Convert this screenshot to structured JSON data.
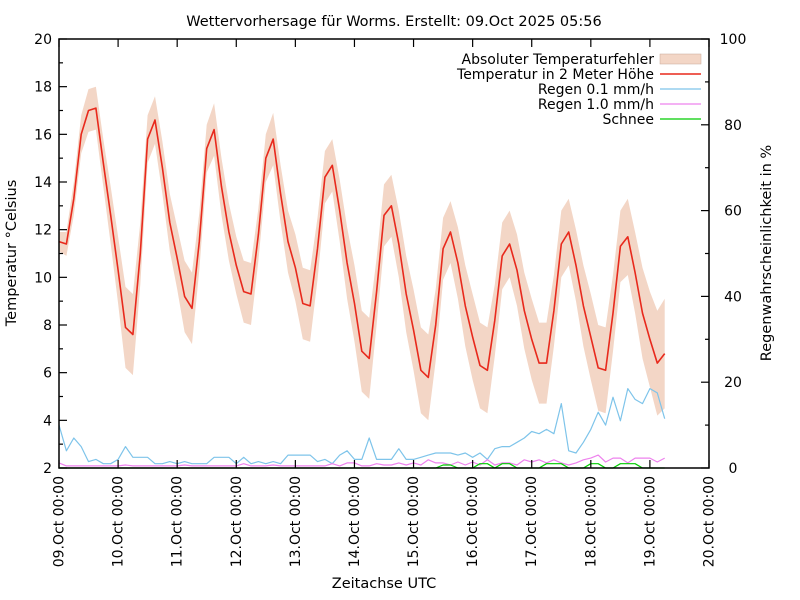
{
  "title": "Wettervorhersage für Worms. Erstellt: 09.Oct 2025 05:56",
  "axes": {
    "x_label": "Zeitachse UTC",
    "y_left_label": "Temperatur °Celsius",
    "y_right_label": "Regenwahrscheinlichkeit in %"
  },
  "colors": {
    "background": "#ffffff",
    "border": "#000000",
    "text": "#000000",
    "error_band": "#f3d6c6",
    "temperature": "#e8291c",
    "rain_01": "#7ec4ea",
    "rain_10": "#ee82ee",
    "snow": "#00cc00"
  },
  "chart_data": {
    "type": "line",
    "title": "Wettervorhersage für Worms. Erstellt: 09.Oct 2025 05:56",
    "xlabel": "Zeitachse UTC",
    "x_unit": "hours since 09.Oct 00:00 UTC",
    "x_range_hours": [
      0,
      264
    ],
    "grid": false,
    "legend_position": "top-right-inside",
    "x_ticks": [
      {
        "hour": 0,
        "label": "09.Oct 00:00"
      },
      {
        "hour": 24,
        "label": "10.Oct 00:00"
      },
      {
        "hour": 48,
        "label": "11.Oct 00:00"
      },
      {
        "hour": 72,
        "label": "12.Oct 00:00"
      },
      {
        "hour": 96,
        "label": "13.Oct 00:00"
      },
      {
        "hour": 120,
        "label": "14.Oct 00:00"
      },
      {
        "hour": 144,
        "label": "15.Oct 00:00"
      },
      {
        "hour": 168,
        "label": "16.Oct 00:00"
      },
      {
        "hour": 192,
        "label": "17.Oct 00:00"
      },
      {
        "hour": 216,
        "label": "18.Oct 00:00"
      },
      {
        "hour": 240,
        "label": "19.Oct 00:00"
      },
      {
        "hour": 264,
        "label": "20.Oct 00:00"
      }
    ],
    "y_left": {
      "label": "Temperatur °Celsius",
      "min": 2,
      "max": 20,
      "major_ticks": [
        2,
        4,
        6,
        8,
        10,
        12,
        14,
        16,
        18,
        20
      ],
      "minor_ticks": [
        3,
        5,
        7,
        9,
        11,
        13,
        15,
        17,
        19
      ]
    },
    "y_right": {
      "label": "Regenwahrscheinlichkeit in %",
      "min": 0,
      "max": 100,
      "major_ticks": [
        0,
        20,
        40,
        60,
        80,
        100
      ],
      "minor_ticks": [
        10,
        30,
        50,
        70,
        90
      ]
    },
    "x_hours": [
      0,
      3,
      6,
      9,
      12,
      15,
      18,
      21,
      24,
      27,
      30,
      33,
      36,
      39,
      42,
      45,
      48,
      51,
      54,
      57,
      60,
      63,
      66,
      69,
      72,
      75,
      78,
      81,
      84,
      87,
      90,
      93,
      96,
      99,
      102,
      105,
      108,
      111,
      114,
      117,
      120,
      123,
      126,
      129,
      132,
      135,
      138,
      141,
      144,
      147,
      150,
      153,
      156,
      159,
      162,
      165,
      168,
      171,
      174,
      177,
      180,
      183,
      186,
      189,
      192,
      195,
      198,
      201,
      204,
      207,
      210,
      213,
      216,
      219,
      222,
      225,
      228,
      231,
      234,
      237,
      240,
      243,
      246
    ],
    "series": [
      {
        "id": "error_band",
        "name": "Absoluter Temperaturfehler",
        "type": "band",
        "axis": "left",
        "color": "#f3d6c6",
        "half_width": [
          0.4,
          0.5,
          0.7,
          0.8,
          0.9,
          0.9,
          1.0,
          1.2,
          1.4,
          1.7,
          1.7,
          1.3,
          1.0,
          1.0,
          1.1,
          1.2,
          1.3,
          1.5,
          1.5,
          1.2,
          1.0,
          1.1,
          1.2,
          1.2,
          1.2,
          1.3,
          1.3,
          1.1,
          1.0,
          1.1,
          1.2,
          1.3,
          1.4,
          1.5,
          1.5,
          1.3,
          1.1,
          1.1,
          1.3,
          1.5,
          1.6,
          1.7,
          1.7,
          1.4,
          1.3,
          1.3,
          1.4,
          1.6,
          1.7,
          1.8,
          1.8,
          1.5,
          1.3,
          1.3,
          1.5,
          1.7,
          1.8,
          1.8,
          1.8,
          1.5,
          1.4,
          1.4,
          1.5,
          1.6,
          1.7,
          1.7,
          1.7,
          1.5,
          1.4,
          1.4,
          1.5,
          1.7,
          1.8,
          1.8,
          1.8,
          1.6,
          1.5,
          1.6,
          1.7,
          1.9,
          2.0,
          2.2,
          2.3
        ]
      },
      {
        "id": "temperature",
        "name": "Temperatur in 2 Meter Höhe",
        "type": "line",
        "axis": "left",
        "color": "#e8291c",
        "values": [
          11.5,
          11.4,
          13.3,
          16.0,
          17.0,
          17.1,
          14.8,
          12.6,
          10.3,
          7.9,
          7.6,
          11.0,
          15.8,
          16.6,
          14.6,
          12.3,
          10.8,
          9.2,
          8.7,
          11.5,
          15.4,
          16.2,
          13.8,
          11.9,
          10.5,
          9.4,
          9.3,
          11.8,
          15.0,
          15.8,
          13.5,
          11.5,
          10.4,
          8.9,
          8.8,
          11.2,
          14.2,
          14.7,
          12.8,
          10.6,
          8.9,
          6.9,
          6.6,
          9.4,
          12.6,
          13.0,
          11.4,
          9.3,
          7.8,
          6.1,
          5.8,
          8.0,
          11.2,
          11.9,
          10.6,
          8.8,
          7.5,
          6.3,
          6.1,
          8.2,
          10.9,
          11.4,
          10.3,
          8.6,
          7.4,
          6.4,
          6.4,
          8.6,
          11.4,
          11.9,
          10.5,
          8.8,
          7.5,
          6.2,
          6.1,
          8.5,
          11.3,
          11.7,
          10.2,
          8.5,
          7.4,
          6.4,
          6.8
        ]
      },
      {
        "id": "rain_01",
        "name": "Regen 0.1 mm/h",
        "type": "line",
        "axis": "right",
        "color": "#7ec4ea",
        "values": [
          10,
          4,
          7,
          5,
          1.5,
          2,
          1,
          1,
          2,
          5,
          2.5,
          2.5,
          2.5,
          1,
          1,
          1.5,
          1,
          1.5,
          1,
          1,
          1,
          2.5,
          2.5,
          2.5,
          1,
          2.5,
          1,
          1.5,
          1,
          1.5,
          1,
          3,
          3,
          3,
          3,
          1.5,
          2,
          1,
          3,
          4,
          2,
          2,
          7,
          2,
          2,
          2,
          4.5,
          2,
          2,
          2.5,
          3,
          3.5,
          3.5,
          3.5,
          3,
          3.5,
          2.5,
          3.5,
          2,
          4.5,
          5,
          5,
          6,
          7,
          8.5,
          8,
          9,
          8,
          15,
          4,
          3.5,
          6,
          9,
          13,
          10,
          16.5,
          11,
          18.5,
          16,
          15,
          18.5,
          17.5,
          11.5
        ]
      },
      {
        "id": "rain_10",
        "name": "Regen 1.0 mm/h",
        "type": "line",
        "axis": "right",
        "color": "#ee82ee",
        "values": [
          1.2,
          0.5,
          0.5,
          0.5,
          0.5,
          0.5,
          0.5,
          0.5,
          0.5,
          0.7,
          0.5,
          0.5,
          0.5,
          0.5,
          0.5,
          0.5,
          0.5,
          0.7,
          0.5,
          0.5,
          0.5,
          0.5,
          0.5,
          0.5,
          0.5,
          1.0,
          0.5,
          0.5,
          0.5,
          0.7,
          0.5,
          0.5,
          0.5,
          0.5,
          0.5,
          0.5,
          0.5,
          1.0,
          0.5,
          1.2,
          1.2,
          0.5,
          0.5,
          1.0,
          0.7,
          0.7,
          1.2,
          0.7,
          1.2,
          0.7,
          1.9,
          1.2,
          1.2,
          0.7,
          1.4,
          0.7,
          1.4,
          0.7,
          1.9,
          0.7,
          1.2,
          1.2,
          0.7,
          1.9,
          1.4,
          1.9,
          1.2,
          1.9,
          1.2,
          0.7,
          1.2,
          1.9,
          2.3,
          3.0,
          1.4,
          2.3,
          2.3,
          1.2,
          2.3,
          2.3,
          2.3,
          1.4,
          2.3
        ]
      },
      {
        "id": "snow",
        "name": "Schnee",
        "type": "line",
        "axis": "right",
        "color": "#00cc00",
        "values": [
          0,
          0,
          0,
          0,
          0,
          0,
          0,
          0,
          0,
          0,
          0,
          0,
          0,
          0,
          0,
          0,
          0,
          0,
          0,
          0,
          0,
          0,
          0,
          0,
          0,
          0,
          0,
          0,
          0,
          0,
          0,
          0,
          0,
          0,
          0,
          0,
          0,
          0,
          0,
          0,
          0,
          0,
          0,
          0,
          0,
          0,
          0,
          0,
          0,
          0,
          0,
          0,
          0.7,
          0.7,
          0,
          0,
          0,
          1.0,
          1.0,
          0,
          1.0,
          1.0,
          0,
          0,
          0,
          0,
          1.0,
          1.0,
          1.0,
          0,
          0,
          0,
          1.0,
          1.0,
          0,
          0,
          1.0,
          1.0,
          1.0,
          0,
          0,
          0,
          0
        ]
      }
    ]
  }
}
